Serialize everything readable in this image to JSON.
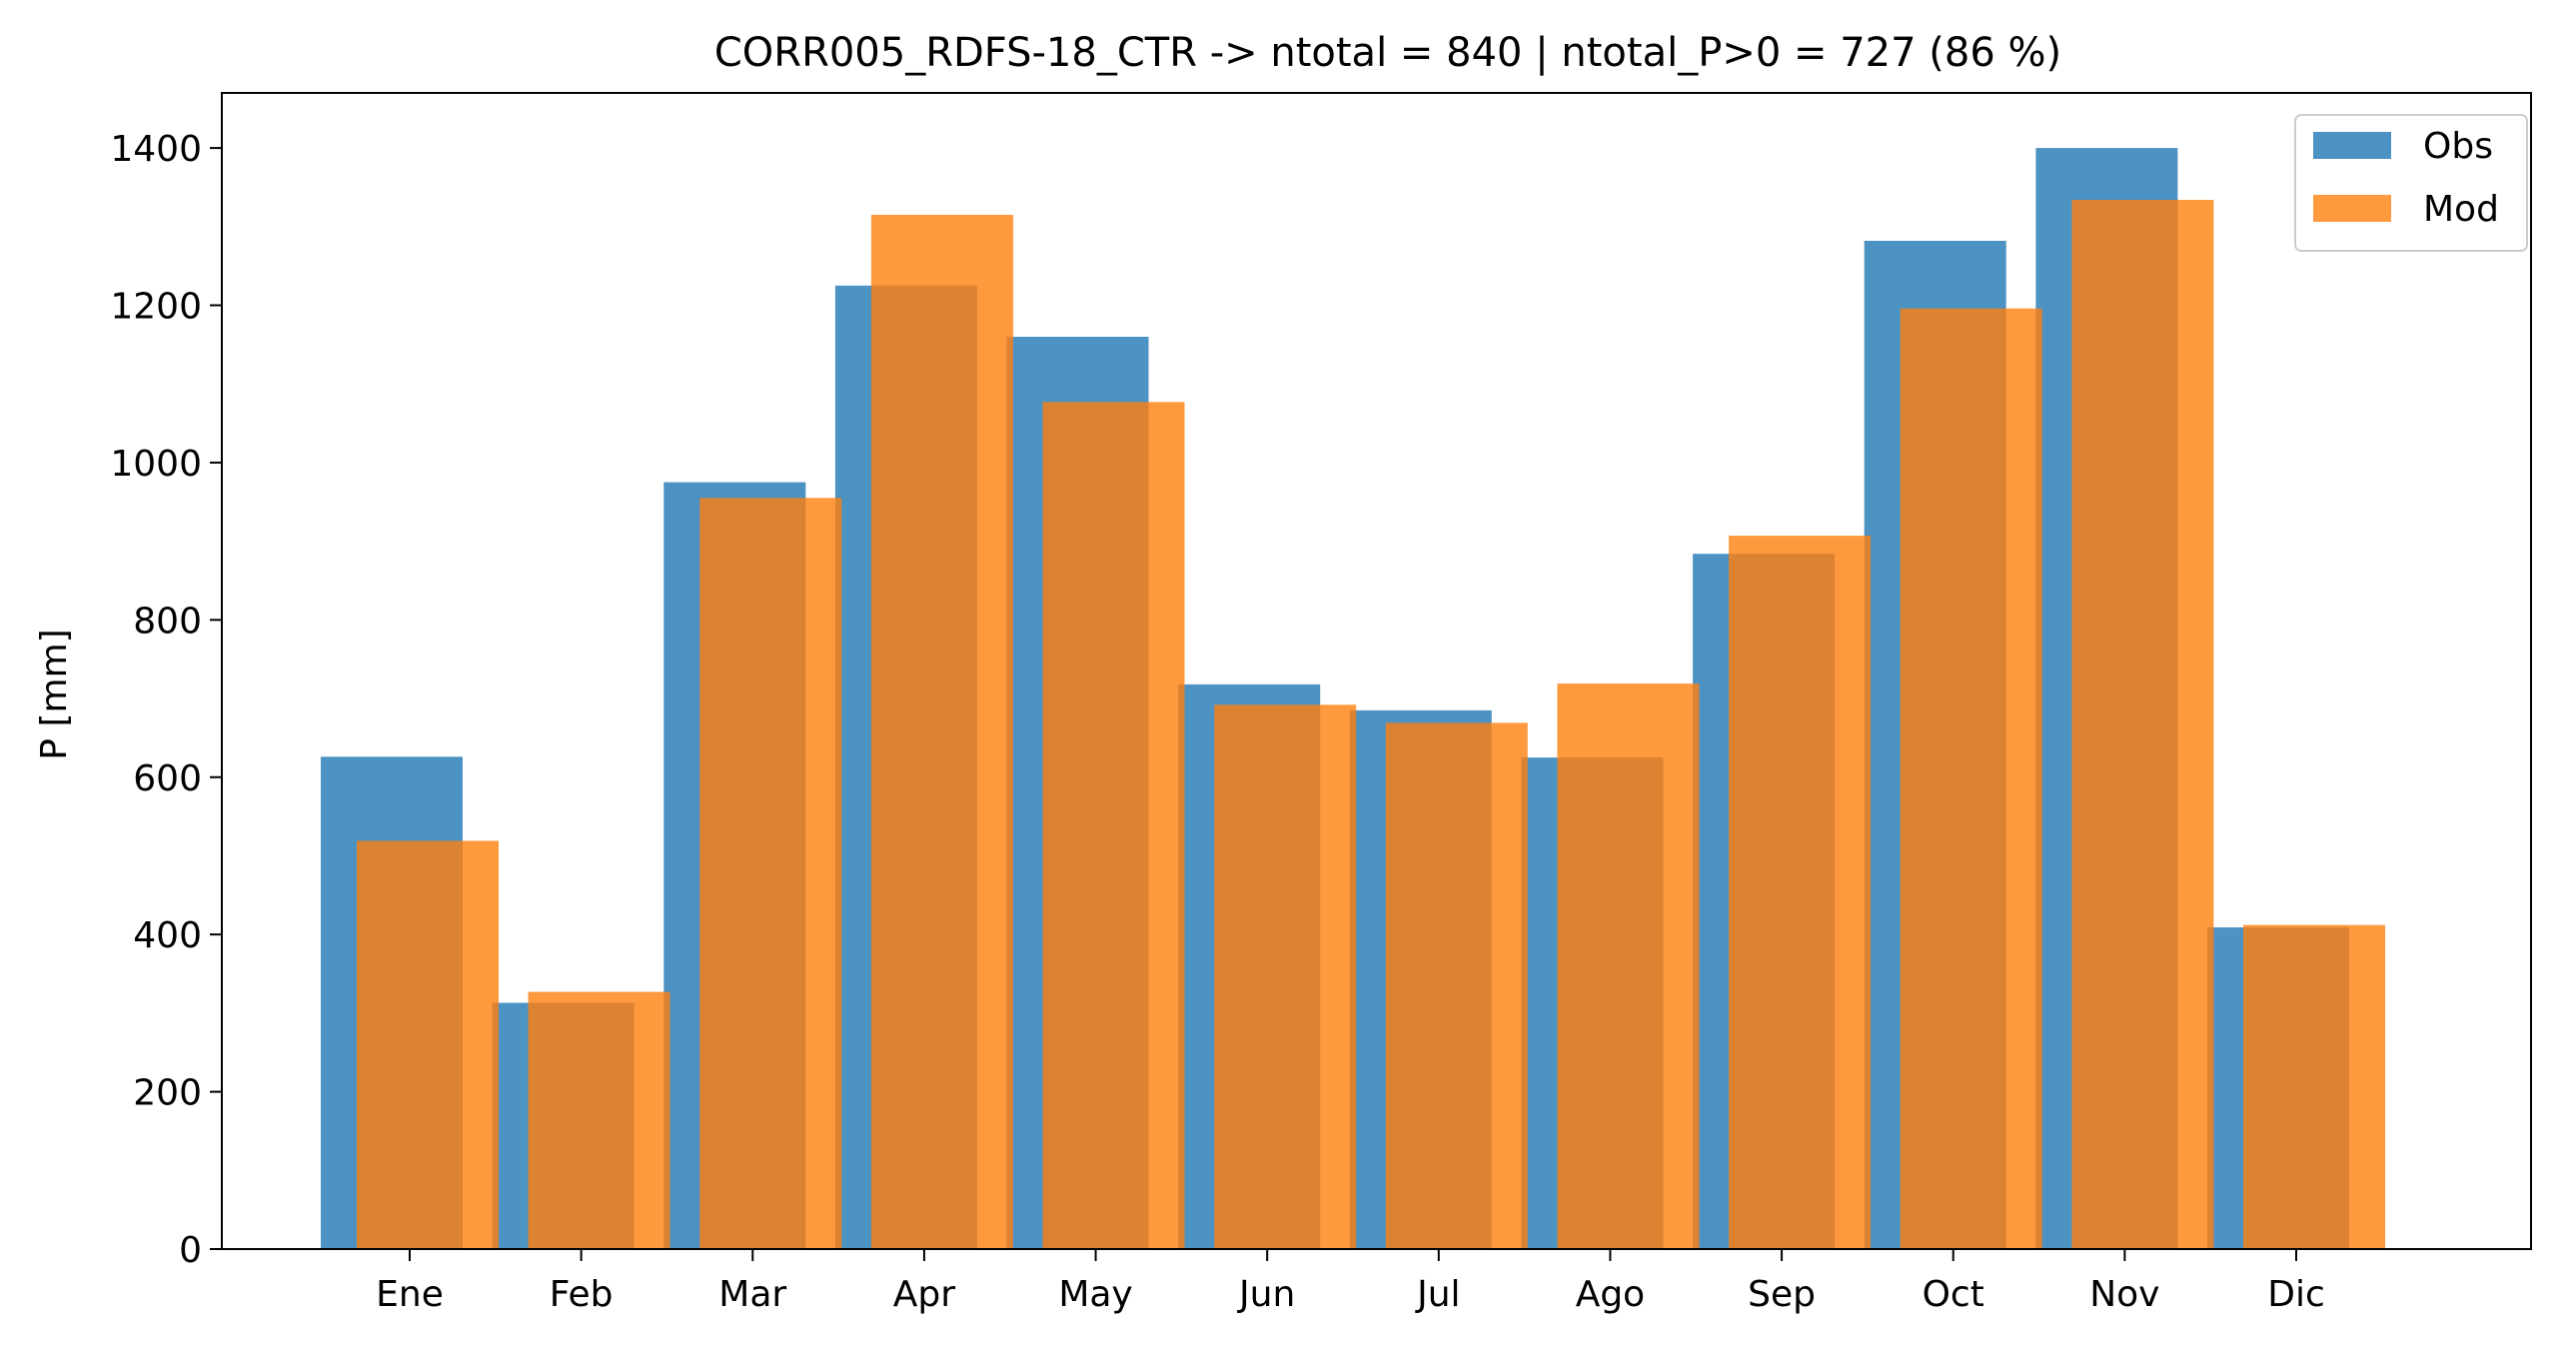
{
  "chart_data": {
    "type": "bar",
    "title": "CORR005_RDFS-18_CTR -> ntotal = 840 | ntotal_P>0 = 727 (86 %)",
    "xlabel": "",
    "ylabel": "P [mm]",
    "ylim": [
      0,
      1470
    ],
    "yticks": [
      0,
      200,
      400,
      600,
      800,
      1000,
      1200,
      1400
    ],
    "categories": [
      "Ene",
      "Feb",
      "Mar",
      "Apr",
      "May",
      "Jun",
      "Jul",
      "Ago",
      "Sep",
      "Oct",
      "Nov",
      "Dic"
    ],
    "series": [
      {
        "name": "Obs",
        "color": "#1f77b4",
        "values": [
          626,
          313,
          975,
          1225,
          1160,
          718,
          685,
          625,
          884,
          1282,
          1400,
          409
        ]
      },
      {
        "name": "Mod",
        "color": "#ff7f0e",
        "values": [
          519,
          327,
          955,
          1315,
          1077,
          692,
          669,
          719,
          907,
          1196,
          1334,
          412
        ]
      }
    ],
    "legend": {
      "position": "top-right"
    },
    "grid": false
  }
}
